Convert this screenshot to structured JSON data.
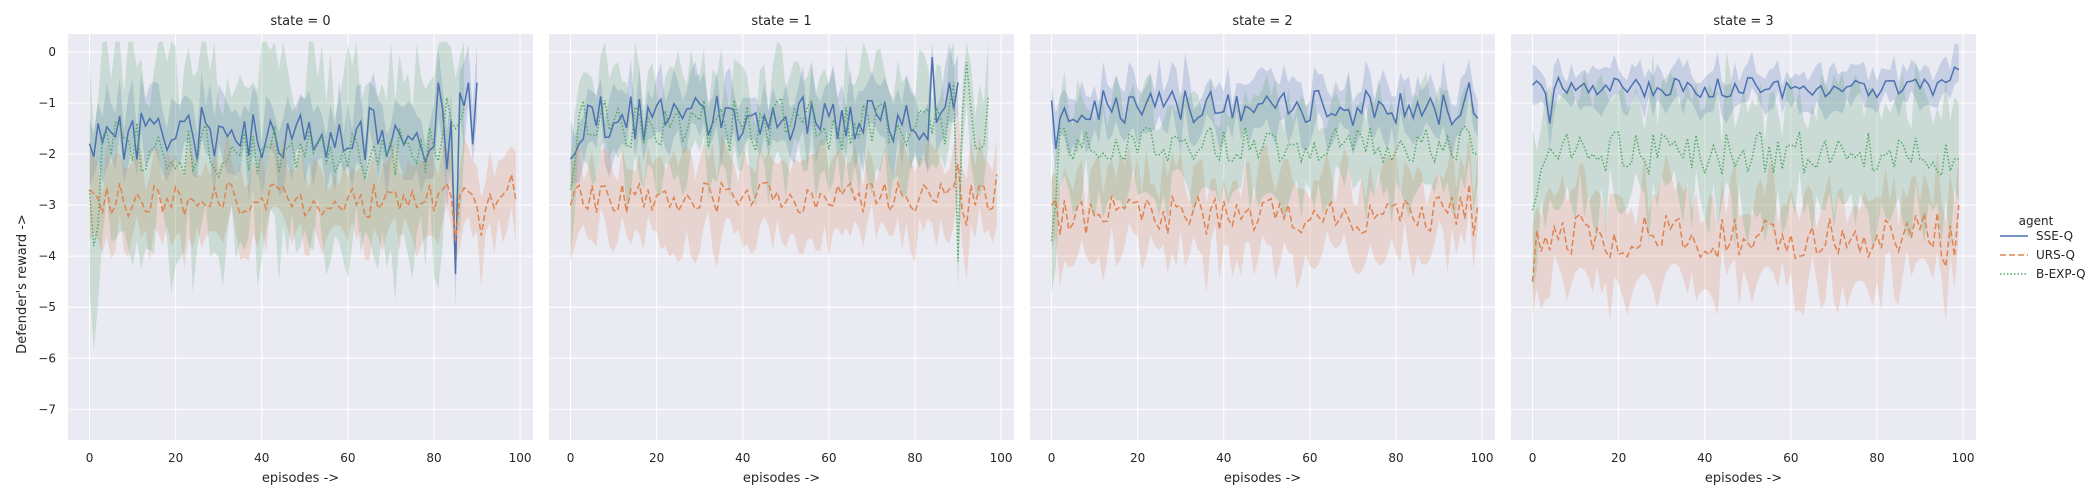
{
  "chart_data": {
    "type": "line",
    "x_label": "episodes ->",
    "y_label": "Defender's reward ->",
    "xlim": [
      -5,
      103
    ],
    "ylim": [
      -7.6,
      0.35
    ],
    "x_ticks": [
      0,
      20,
      40,
      60,
      80,
      100
    ],
    "y_ticks": [
      0,
      -1,
      -2,
      -3,
      -4,
      -5,
      -6,
      -7
    ],
    "y_tick_labels": [
      "0",
      "−1",
      "−2",
      "−3",
      "−4",
      "−5",
      "−6",
      "−7"
    ],
    "grid": true,
    "legend": {
      "title": "agent",
      "position": "right",
      "entries": [
        {
          "name": "SSE-Q",
          "color": "#4c72b0",
          "dash": "solid"
        },
        {
          "name": "URS-Q",
          "color": "#dd8452",
          "dash": "dashed"
        },
        {
          "name": "B-EXP-Q",
          "color": "#55a868",
          "dash": "dotted"
        }
      ]
    },
    "facets": [
      {
        "title": "state = 0",
        "series": [
          {
            "name": "SSE-Q",
            "x_end": 90,
            "mean": -1.6,
            "amp": 0.55,
            "band": 0.6,
            "seed": 11,
            "points": [
              [
                0,
                -1.8
              ],
              [
                1,
                -2.05
              ],
              [
                2,
                -1.4
              ],
              [
                81,
                -0.6
              ],
              [
                83,
                -2.3
              ],
              [
                85,
                -4.35
              ],
              [
                86,
                -0.8
              ],
              [
                88,
                -0.6
              ],
              [
                90,
                -0.6
              ]
            ]
          },
          {
            "name": "URS-Q",
            "x_end": 99,
            "mean": -2.9,
            "amp": 0.35,
            "band": 0.7,
            "seed": 23,
            "points": [
              [
                0,
                -2.7
              ],
              [
                85,
                -3.7
              ],
              [
                89,
                -2.8
              ],
              [
                91,
                -3.6
              ],
              [
                96,
                -2.8
              ],
              [
                98,
                -2.4
              ],
              [
                99,
                -2.9
              ]
            ]
          },
          {
            "name": "B-EXP-Q",
            "x_end": 87,
            "mean": -1.9,
            "amp": 0.55,
            "band": 1.7,
            "seed": 37,
            "points": [
              [
                0,
                -2.7
              ],
              [
                1,
                -3.8
              ],
              [
                2,
                -3.4
              ],
              [
                83,
                -0.9
              ],
              [
                85,
                -1.5
              ],
              [
                87,
                -1.1
              ]
            ]
          }
        ]
      },
      {
        "title": "state = 1",
        "series": [
          {
            "name": "SSE-Q",
            "x_end": 90,
            "mean": -1.3,
            "amp": 0.45,
            "band": 0.55,
            "seed": 13,
            "points": [
              [
                0,
                -2.1
              ],
              [
                1,
                -2.0
              ],
              [
                2,
                -1.8
              ],
              [
                84,
                -0.1
              ],
              [
                86,
                -1.2
              ],
              [
                88,
                -0.6
              ],
              [
                90,
                -0.6
              ]
            ]
          },
          {
            "name": "URS-Q",
            "x_end": 99,
            "mean": -2.85,
            "amp": 0.3,
            "band": 0.75,
            "seed": 29,
            "points": [
              [
                0,
                -3.0
              ],
              [
                1,
                -2.7
              ],
              [
                90,
                -2.2
              ],
              [
                92,
                -3.4
              ],
              [
                95,
                -2.6
              ],
              [
                97,
                -3.1
              ],
              [
                99,
                -2.4
              ]
            ]
          },
          {
            "name": "B-EXP-Q",
            "x_end": 97,
            "mean": -1.4,
            "amp": 0.55,
            "band": 0.9,
            "seed": 41,
            "points": [
              [
                0,
                -2.7
              ],
              [
                1,
                -2.2
              ],
              [
                89,
                -0.6
              ],
              [
                90,
                -4.1
              ],
              [
                92,
                -0.2
              ],
              [
                93,
                -1.1
              ],
              [
                95,
                -1.9
              ],
              [
                97,
                -0.9
              ]
            ]
          }
        ]
      },
      {
        "title": "state = 2",
        "series": [
          {
            "name": "SSE-Q",
            "x_end": 99,
            "mean": -1.1,
            "amp": 0.35,
            "band": 0.5,
            "seed": 17,
            "points": [
              [
                0,
                -0.95
              ],
              [
                1,
                -1.9
              ],
              [
                2,
                -1.3
              ],
              [
                97,
                -0.6
              ],
              [
                98,
                -1.2
              ],
              [
                99,
                -1.3
              ]
            ]
          },
          {
            "name": "URS-Q",
            "x_end": 99,
            "mean": -3.2,
            "amp": 0.4,
            "band": 0.8,
            "seed": 31,
            "points": [
              [
                0,
                -3.0
              ],
              [
                1,
                -2.9
              ],
              [
                97,
                -2.6
              ],
              [
                98,
                -3.6
              ],
              [
                99,
                -3.0
              ]
            ]
          },
          {
            "name": "B-EXP-Q",
            "x_end": 99,
            "mean": -1.8,
            "amp": 0.35,
            "band": 0.9,
            "seed": 43,
            "points": [
              [
                0,
                -3.7
              ],
              [
                1,
                -2.9
              ],
              [
                2,
                -1.5
              ],
              [
                98,
                -2.0
              ],
              [
                99,
                -2.0
              ]
            ]
          }
        ]
      },
      {
        "title": "state = 3",
        "series": [
          {
            "name": "SSE-Q",
            "x_end": 99,
            "mean": -0.7,
            "amp": 0.2,
            "band": 0.35,
            "seed": 19,
            "points": [
              [
                0,
                -0.65
              ],
              [
                2,
                -0.65
              ],
              [
                4,
                -1.4
              ],
              [
                96,
                -0.6
              ],
              [
                98,
                -0.3
              ],
              [
                99,
                -0.35
              ]
            ]
          },
          {
            "name": "URS-Q",
            "x_end": 99,
            "mean": -3.6,
            "amp": 0.45,
            "band": 0.85,
            "seed": 33,
            "points": [
              [
                0,
                -4.5
              ],
              [
                1,
                -3.5
              ],
              [
                96,
                -4.2
              ],
              [
                97,
                -3.4
              ],
              [
                98,
                -4.0
              ],
              [
                99,
                -3.0
              ]
            ]
          },
          {
            "name": "B-EXP-Q",
            "x_end": 99,
            "mean": -2.0,
            "amp": 0.45,
            "band": 1.1,
            "seed": 47,
            "points": [
              [
                0,
                -3.1
              ],
              [
                1,
                -2.8
              ],
              [
                2,
                -2.3
              ],
              [
                96,
                -1.8
              ],
              [
                98,
                -2.1
              ],
              [
                99,
                -2.1
              ]
            ]
          }
        ]
      }
    ]
  }
}
